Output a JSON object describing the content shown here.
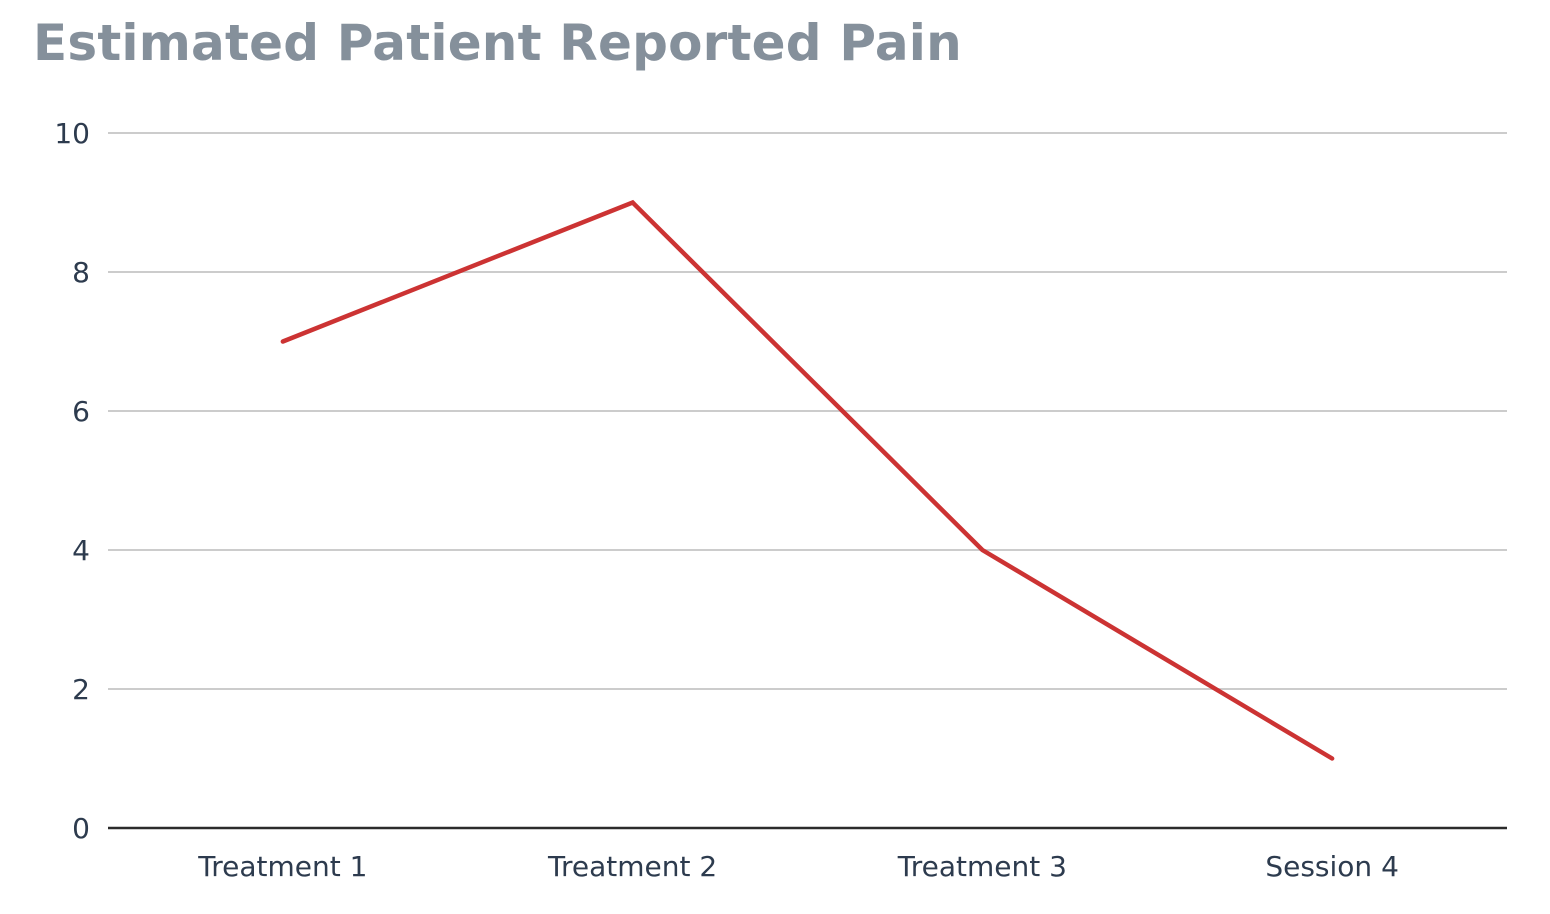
{
  "chart_data": {
    "type": "line",
    "title": "Estimated Patient Reported Pain",
    "xlabel": "",
    "ylabel": "",
    "categories": [
      "Treatment 1",
      "Treatment 2",
      "Treatment 3",
      "Session 4"
    ],
    "series": [
      {
        "values": [
          7,
          9,
          4,
          1
        ]
      }
    ],
    "ylim": [
      0,
      10
    ],
    "yticks": [
      0,
      2,
      4,
      6,
      8,
      10
    ],
    "grid": true,
    "legend": "none",
    "colors": {
      "line": "#cc3333",
      "grid": "#cccccc",
      "axis": "#2b2b2b",
      "title": "#85909b",
      "tick_text": "#2d3b4e"
    }
  }
}
